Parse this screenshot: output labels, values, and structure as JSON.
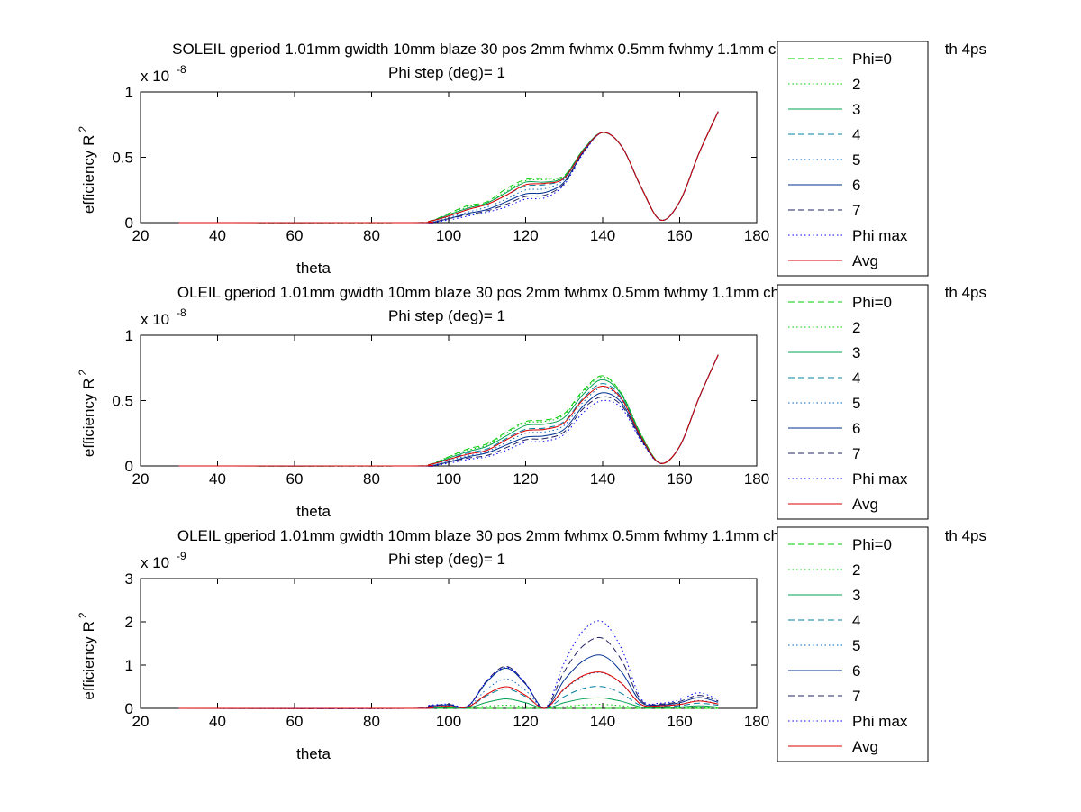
{
  "chart_data": [
    {
      "type": "line",
      "title": "SOLEIL gperiod 1.01mm gwidth 10mm blaze 30 pos 2mm fwhmx 0.5mm fwhmy 1.1mm charge",
      "title_tail": "th 4ps",
      "subtitle": "Phi step (deg)= 1",
      "xlabel": "theta",
      "ylabel": "efficiency R",
      "ylabel_sup": "2",
      "xlim": [
        20,
        180
      ],
      "ylim": [
        0,
        1
      ],
      "y_multiplier": "x 10",
      "y_multiplier_exp": "-8",
      "xticks": [
        "20",
        "40",
        "60",
        "80",
        "100",
        "120",
        "140",
        "160",
        "180"
      ],
      "yticks": [
        "0",
        "0.5",
        "1"
      ],
      "legend_position": "right",
      "grid": false,
      "x": [
        30,
        90,
        95,
        100,
        105,
        110,
        115,
        120,
        125,
        130,
        135,
        140,
        145,
        150,
        155,
        160,
        165,
        170
      ],
      "series": [
        {
          "name": "Phi=0",
          "color": "#00cc00",
          "dash": "7,4",
          "values": [
            0,
            0,
            0.01,
            0.07,
            0.13,
            0.16,
            0.26,
            0.33,
            0.34,
            0.36,
            0.56,
            0.69,
            0.58,
            0.27,
            0.02,
            0.16,
            0.53,
            0.85
          ]
        },
        {
          "name": "2",
          "color": "#00cc00",
          "dash": "1.5,3",
          "values": [
            0,
            0,
            0.01,
            0.06,
            0.12,
            0.15,
            0.24,
            0.32,
            0.33,
            0.35,
            0.56,
            0.69,
            0.58,
            0.27,
            0.02,
            0.16,
            0.53,
            0.85
          ]
        },
        {
          "name": "3",
          "color": "#00a050",
          "dash": "",
          "values": [
            0,
            0,
            0.01,
            0.06,
            0.11,
            0.15,
            0.23,
            0.31,
            0.31,
            0.35,
            0.56,
            0.69,
            0.58,
            0.27,
            0.02,
            0.16,
            0.53,
            0.85
          ]
        },
        {
          "name": "4",
          "color": "#0080a0",
          "dash": "7,4",
          "values": [
            0,
            0,
            0.01,
            0.05,
            0.1,
            0.14,
            0.21,
            0.28,
            0.29,
            0.34,
            0.55,
            0.69,
            0.58,
            0.27,
            0.02,
            0.16,
            0.53,
            0.85
          ]
        },
        {
          "name": "5",
          "color": "#0060c0",
          "dash": "1.5,3",
          "values": [
            0,
            0,
            0.01,
            0.04,
            0.08,
            0.12,
            0.18,
            0.25,
            0.26,
            0.33,
            0.55,
            0.69,
            0.58,
            0.27,
            0.02,
            0.16,
            0.53,
            0.85
          ]
        },
        {
          "name": "6",
          "color": "#003090",
          "dash": "",
          "values": [
            0,
            0,
            0.0,
            0.03,
            0.07,
            0.1,
            0.16,
            0.22,
            0.23,
            0.31,
            0.54,
            0.69,
            0.58,
            0.27,
            0.02,
            0.16,
            0.53,
            0.85
          ]
        },
        {
          "name": "7",
          "color": "#202060",
          "dash": "7,4",
          "values": [
            0,
            0,
            0.0,
            0.03,
            0.06,
            0.09,
            0.14,
            0.2,
            0.21,
            0.3,
            0.54,
            0.69,
            0.58,
            0.27,
            0.02,
            0.16,
            0.53,
            0.85
          ]
        },
        {
          "name": "Phi max",
          "color": "#0000ff",
          "dash": "1.5,3",
          "values": [
            0,
            0,
            0.0,
            0.02,
            0.05,
            0.08,
            0.12,
            0.18,
            0.19,
            0.29,
            0.53,
            0.69,
            0.58,
            0.27,
            0.02,
            0.16,
            0.53,
            0.85
          ]
        },
        {
          "name": "Avg",
          "color": "#dd0000",
          "dash": "",
          "values": [
            0,
            0,
            0.01,
            0.05,
            0.1,
            0.14,
            0.21,
            0.29,
            0.3,
            0.34,
            0.55,
            0.69,
            0.58,
            0.27,
            0.02,
            0.16,
            0.53,
            0.85
          ]
        }
      ]
    },
    {
      "type": "line",
      "title": "OLEIL gperiod 1.01mm gwidth 10mm blaze 30 pos 2mm fwhmx 0.5mm fwhmy 1.1mm charge",
      "title_tail": "th 4ps",
      "subtitle": "Phi step (deg)= 1",
      "xlabel": "theta",
      "ylabel": "efficiency R",
      "ylabel_sup": "2",
      "xlim": [
        20,
        180
      ],
      "ylim": [
        0,
        1
      ],
      "y_multiplier": "x 10",
      "y_multiplier_exp": "-8",
      "xticks": [
        "20",
        "40",
        "60",
        "80",
        "100",
        "120",
        "140",
        "160",
        "180"
      ],
      "yticks": [
        "0",
        "0.5",
        "1"
      ],
      "legend_position": "right",
      "grid": false,
      "x": [
        30,
        90,
        95,
        100,
        105,
        110,
        115,
        120,
        125,
        130,
        135,
        140,
        145,
        150,
        155,
        160,
        165,
        170
      ],
      "series": [
        {
          "name": "Phi=0",
          "color": "#00cc00",
          "dash": "7,4",
          "values": [
            0,
            0,
            0.01,
            0.07,
            0.13,
            0.17,
            0.26,
            0.34,
            0.35,
            0.4,
            0.58,
            0.69,
            0.55,
            0.24,
            0.02,
            0.15,
            0.52,
            0.85
          ]
        },
        {
          "name": "2",
          "color": "#00cc00",
          "dash": "1.5,3",
          "values": [
            0,
            0,
            0.01,
            0.07,
            0.12,
            0.16,
            0.25,
            0.33,
            0.34,
            0.39,
            0.57,
            0.68,
            0.55,
            0.24,
            0.02,
            0.15,
            0.52,
            0.85
          ]
        },
        {
          "name": "3",
          "color": "#00a050",
          "dash": "",
          "values": [
            0,
            0,
            0.01,
            0.06,
            0.11,
            0.15,
            0.23,
            0.31,
            0.32,
            0.37,
            0.55,
            0.66,
            0.54,
            0.23,
            0.02,
            0.15,
            0.52,
            0.85
          ]
        },
        {
          "name": "4",
          "color": "#0080a0",
          "dash": "7,4",
          "values": [
            0,
            0,
            0.01,
            0.05,
            0.1,
            0.13,
            0.21,
            0.28,
            0.29,
            0.34,
            0.52,
            0.63,
            0.52,
            0.22,
            0.02,
            0.15,
            0.52,
            0.85
          ]
        },
        {
          "name": "5",
          "color": "#0060c0",
          "dash": "1.5,3",
          "values": [
            0,
            0,
            0.01,
            0.04,
            0.08,
            0.11,
            0.18,
            0.25,
            0.26,
            0.31,
            0.49,
            0.6,
            0.5,
            0.21,
            0.02,
            0.15,
            0.52,
            0.85
          ]
        },
        {
          "name": "6",
          "color": "#003090",
          "dash": "",
          "values": [
            0,
            0,
            0.0,
            0.03,
            0.07,
            0.1,
            0.16,
            0.22,
            0.23,
            0.28,
            0.46,
            0.56,
            0.48,
            0.21,
            0.02,
            0.15,
            0.52,
            0.85
          ]
        },
        {
          "name": "7",
          "color": "#202060",
          "dash": "7,4",
          "values": [
            0,
            0,
            0.0,
            0.03,
            0.06,
            0.08,
            0.14,
            0.2,
            0.21,
            0.26,
            0.44,
            0.53,
            0.46,
            0.2,
            0.02,
            0.15,
            0.52,
            0.85
          ]
        },
        {
          "name": "Phi max",
          "color": "#0000ff",
          "dash": "1.5,3",
          "values": [
            0,
            0,
            0.0,
            0.02,
            0.05,
            0.07,
            0.12,
            0.18,
            0.19,
            0.24,
            0.41,
            0.5,
            0.44,
            0.19,
            0.02,
            0.15,
            0.52,
            0.85
          ]
        },
        {
          "name": "Avg",
          "color": "#dd0000",
          "dash": "",
          "values": [
            0,
            0,
            0.01,
            0.05,
            0.09,
            0.12,
            0.2,
            0.27,
            0.28,
            0.33,
            0.51,
            0.61,
            0.51,
            0.22,
            0.02,
            0.15,
            0.52,
            0.85
          ]
        }
      ]
    },
    {
      "type": "line",
      "title": "OLEIL gperiod 1.01mm gwidth 10mm blaze 30 pos 2mm fwhmx 0.5mm fwhmy 1.1mm charge",
      "title_tail": "th 4ps",
      "subtitle": "Phi step (deg)= 1",
      "xlabel": "theta",
      "ylabel": "efficiency R",
      "ylabel_sup": "2",
      "xlim": [
        20,
        180
      ],
      "ylim": [
        0,
        3
      ],
      "y_multiplier": "x 10",
      "y_multiplier_exp": "-9",
      "xticks": [
        "20",
        "40",
        "60",
        "80",
        "100",
        "120",
        "140",
        "160",
        "180"
      ],
      "yticks": [
        "0",
        "1",
        "2",
        "3"
      ],
      "legend_position": "right",
      "grid": false,
      "x": [
        30,
        90,
        95,
        100,
        105,
        110,
        115,
        120,
        125,
        130,
        135,
        140,
        145,
        150,
        155,
        160,
        165,
        170
      ],
      "series": [
        {
          "name": "Phi=0",
          "color": "#00cc00",
          "dash": "7,4",
          "values": [
            0,
            0,
            0,
            0,
            0,
            0,
            0,
            0,
            0,
            0,
            0,
            0,
            0,
            0,
            0,
            0,
            0,
            0
          ]
        },
        {
          "name": "2",
          "color": "#00cc00",
          "dash": "1.5,3",
          "values": [
            0,
            0,
            0.005,
            0.01,
            0.005,
            0.05,
            0.07,
            0.04,
            0.0,
            0.04,
            0.08,
            0.09,
            0.06,
            0.01,
            0.005,
            0.01,
            0.02,
            0.01
          ]
        },
        {
          "name": "3",
          "color": "#00a050",
          "dash": "",
          "values": [
            0,
            0,
            0.01,
            0.02,
            0.01,
            0.14,
            0.22,
            0.13,
            0.0,
            0.13,
            0.22,
            0.24,
            0.16,
            0.03,
            0.02,
            0.03,
            0.06,
            0.03
          ]
        },
        {
          "name": "4",
          "color": "#0080a0",
          "dash": "7,4",
          "values": [
            0,
            0,
            0.02,
            0.04,
            0.02,
            0.3,
            0.45,
            0.27,
            0.0,
            0.27,
            0.46,
            0.5,
            0.34,
            0.06,
            0.04,
            0.06,
            0.12,
            0.07
          ]
        },
        {
          "name": "5",
          "color": "#0060c0",
          "dash": "1.5,3",
          "values": [
            0,
            0,
            0.03,
            0.06,
            0.03,
            0.45,
            0.68,
            0.41,
            0.0,
            0.43,
            0.74,
            0.82,
            0.56,
            0.09,
            0.06,
            0.09,
            0.18,
            0.1
          ]
        },
        {
          "name": "6",
          "color": "#003090",
          "dash": "",
          "values": [
            0,
            0,
            0.05,
            0.08,
            0.05,
            0.62,
            0.93,
            0.56,
            0.0,
            0.65,
            1.1,
            1.22,
            0.83,
            0.14,
            0.08,
            0.13,
            0.25,
            0.14
          ]
        },
        {
          "name": "7",
          "color": "#202060",
          "dash": "7,4",
          "values": [
            0,
            0,
            0.06,
            0.09,
            0.05,
            0.65,
            0.97,
            0.58,
            0.0,
            0.85,
            1.45,
            1.62,
            1.1,
            0.18,
            0.1,
            0.16,
            0.3,
            0.17
          ]
        },
        {
          "name": "Phi max",
          "color": "#0000ff",
          "dash": "1.5,3",
          "values": [
            0,
            0,
            0.07,
            0.1,
            0.06,
            0.64,
            0.95,
            0.57,
            0.0,
            1.05,
            1.8,
            2.0,
            1.36,
            0.22,
            0.12,
            0.2,
            0.36,
            0.2
          ]
        },
        {
          "name": "Avg",
          "color": "#dd0000",
          "dash": "",
          "values": [
            0,
            0,
            0.03,
            0.05,
            0.03,
            0.33,
            0.5,
            0.3,
            0.0,
            0.45,
            0.76,
            0.83,
            0.57,
            0.09,
            0.06,
            0.09,
            0.17,
            0.1
          ]
        }
      ]
    }
  ]
}
